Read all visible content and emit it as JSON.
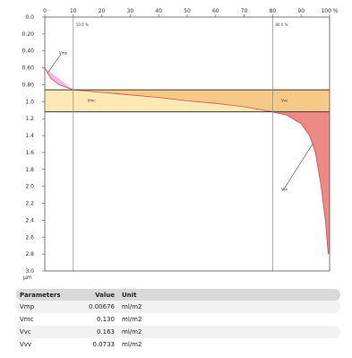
{
  "chart_data": {
    "type": "area",
    "x_unit_label": "%",
    "y_unit_label": "µm",
    "xlim": [
      0,
      100
    ],
    "ylim": [
      0,
      3.0
    ],
    "y_inverted": true,
    "x_ticks": [
      0,
      10,
      20,
      30,
      40,
      50,
      60,
      70,
      80,
      90,
      100
    ],
    "x_tick_labels": [
      "0",
      "10",
      "20",
      "30",
      "40",
      "50",
      "60",
      "70",
      "80",
      "90",
      "100 %"
    ],
    "y_ticks": [
      0.0,
      0.2,
      0.4,
      0.6,
      0.8,
      1.0,
      1.2,
      1.4,
      1.6,
      1.8,
      2.0,
      2.2,
      2.4,
      2.6,
      2.8,
      3.0
    ],
    "y_tick_labels": [
      "0.0",
      "0.20",
      "0.40",
      "0.60",
      "0.80",
      "1.0",
      "1.2",
      "1.4",
      "1.6",
      "1.8",
      "2.0",
      "2.2",
      "2.4",
      "2.6",
      "2.8",
      "3.0"
    ],
    "material_ratio_lines": [
      {
        "x": 10.0,
        "label": "10.0 %"
      },
      {
        "x": 80.0,
        "label": "80.0 %"
      }
    ],
    "core_band": {
      "y_top": 0.86,
      "y_bottom": 1.12
    },
    "curve": [
      [
        0,
        0.6
      ],
      [
        2,
        0.72
      ],
      [
        5,
        0.8
      ],
      [
        10,
        0.86
      ],
      [
        20,
        0.89
      ],
      [
        30,
        0.92
      ],
      [
        40,
        0.95
      ],
      [
        50,
        0.99
      ],
      [
        60,
        1.02
      ],
      [
        70,
        1.06
      ],
      [
        80,
        1.12
      ],
      [
        85,
        1.16
      ],
      [
        90,
        1.26
      ],
      [
        93,
        1.4
      ],
      [
        95,
        1.6
      ],
      [
        97,
        2.0
      ],
      [
        98.5,
        2.4
      ],
      [
        99.5,
        2.8
      ]
    ],
    "annotations": [
      {
        "label": "Vmp",
        "x": 5,
        "y": 0.44
      },
      {
        "label": "Vmc",
        "x": 15,
        "y": 1.0
      },
      {
        "label": "Vvc",
        "x": 83,
        "y": 1.0
      },
      {
        "label": "Vvv",
        "x": 83,
        "y": 2.05
      }
    ]
  },
  "parameters": {
    "headers": [
      "Parameters",
      "Value",
      "Unit"
    ],
    "rows": [
      {
        "name": "Vmp",
        "value": "0.00676",
        "unit": "ml/m2"
      },
      {
        "name": "Vmc",
        "value": "0.130",
        "unit": "ml/m2"
      },
      {
        "name": "Vvc",
        "value": "0.163",
        "unit": "ml/m2"
      },
      {
        "name": "Vvv",
        "value": "0.0733",
        "unit": "ml/m2"
      }
    ]
  },
  "colors": {
    "vmp_fill": "#f4b6e4",
    "vmc_fill": "#f6c987",
    "vvc_fill": "#fde9b3",
    "vvv_fill": "#ee8a86",
    "band_line": "#3a3a3a",
    "curve": "#d24d4d"
  }
}
